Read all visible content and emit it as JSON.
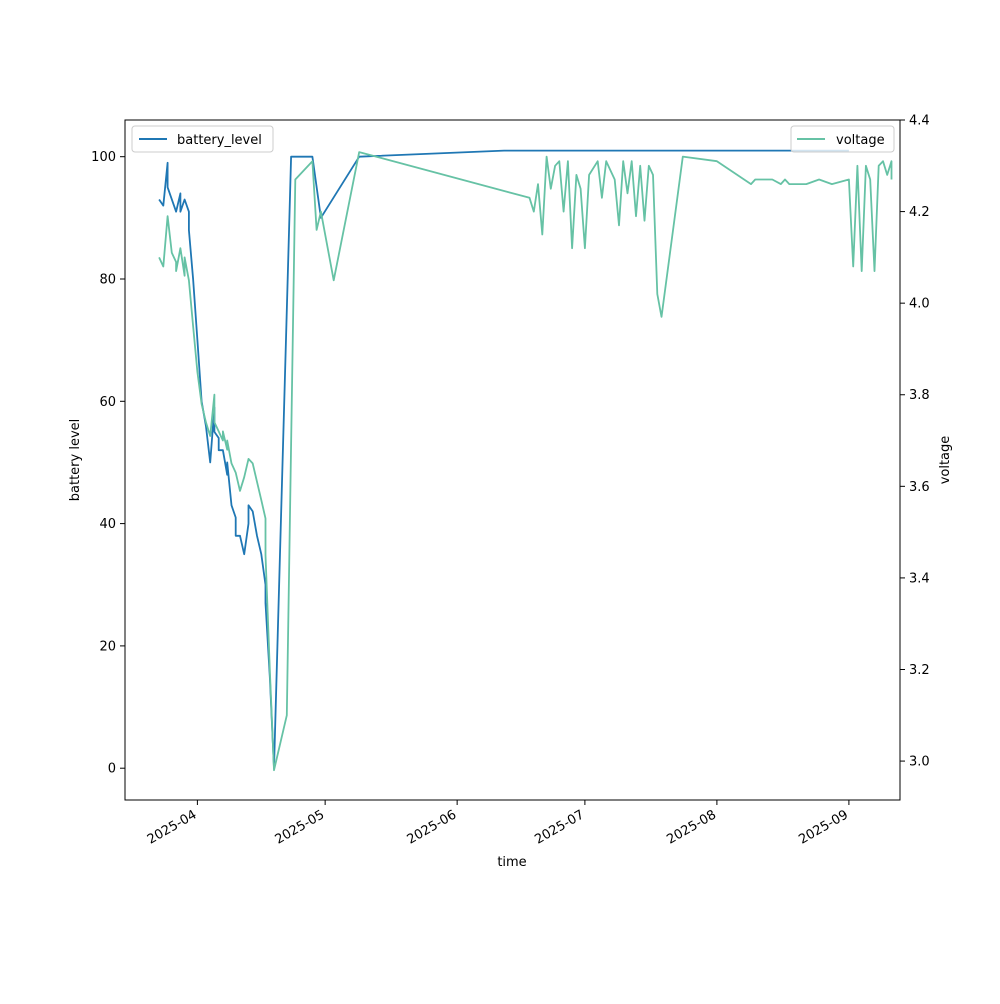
{
  "chart_data": {
    "type": "line",
    "title": "",
    "xlabel": "time",
    "ylabel": "battery level",
    "y2label": "voltage",
    "x_ticks": [
      "2025-04",
      "2025-05",
      "2025-06",
      "2025-07",
      "2025-08",
      "2025-09"
    ],
    "y_ticks": [
      "0",
      "20",
      "40",
      "60",
      "80",
      "100"
    ],
    "y2_ticks": [
      "3.0",
      "3.2",
      "3.4",
      "3.6",
      "3.8",
      "4.0",
      "4.2",
      "4.4"
    ],
    "xlim": [
      "2025-03-15",
      "2025-09-13"
    ],
    "ylim": [
      -5.2,
      106
    ],
    "y2lim": [
      2.915,
      4.4
    ],
    "legend_left": "top-left",
    "legend_right": "top-right",
    "grid": false,
    "colors": {
      "battery_level": "#1f77b4",
      "voltage": "#66c2a5"
    },
    "series": [
      {
        "name": "battery_level",
        "axis": "left",
        "points": [
          [
            "2025-03-23",
            93
          ],
          [
            "2025-03-24",
            92
          ],
          [
            "2025-03-25",
            99
          ],
          [
            "2025-03-25",
            95
          ],
          [
            "2025-03-27",
            91
          ],
          [
            "2025-03-28",
            94
          ],
          [
            "2025-03-28",
            91
          ],
          [
            "2025-03-29",
            93
          ],
          [
            "2025-03-30",
            91
          ],
          [
            "2025-03-30",
            88
          ],
          [
            "2025-03-31",
            80
          ],
          [
            "2025-04-01",
            70
          ],
          [
            "2025-04-02",
            60
          ],
          [
            "2025-04-03",
            56
          ],
          [
            "2025-04-04",
            50
          ],
          [
            "2025-04-05",
            59
          ],
          [
            "2025-04-05",
            55
          ],
          [
            "2025-04-06",
            54
          ],
          [
            "2025-04-06",
            52
          ],
          [
            "2025-04-07",
            52
          ],
          [
            "2025-04-08",
            48
          ],
          [
            "2025-04-08",
            50
          ],
          [
            "2025-04-09",
            43
          ],
          [
            "2025-04-10",
            41
          ],
          [
            "2025-04-10",
            38
          ],
          [
            "2025-04-11",
            38
          ],
          [
            "2025-04-12",
            35
          ],
          [
            "2025-04-13",
            40
          ],
          [
            "2025-04-13",
            43
          ],
          [
            "2025-04-14",
            42
          ],
          [
            "2025-04-15",
            38
          ],
          [
            "2025-04-16",
            35
          ],
          [
            "2025-04-17",
            30
          ],
          [
            "2025-04-17",
            27
          ],
          [
            "2025-04-18",
            15
          ],
          [
            "2025-04-19",
            0
          ],
          [
            "2025-04-23",
            100
          ],
          [
            "2025-04-28",
            100
          ],
          [
            "2025-04-30",
            90
          ],
          [
            "2025-05-09",
            100
          ],
          [
            "2025-06-12",
            101
          ],
          [
            "2025-07-10",
            101
          ],
          [
            "2025-08-08",
            101
          ],
          [
            "2025-09-01",
            101
          ]
        ]
      },
      {
        "name": "voltage",
        "axis": "right",
        "points": [
          [
            "2025-03-23",
            4.1
          ],
          [
            "2025-03-24",
            4.08
          ],
          [
            "2025-03-25",
            4.19
          ],
          [
            "2025-03-26",
            4.11
          ],
          [
            "2025-03-27",
            4.09
          ],
          [
            "2025-03-27",
            4.07
          ],
          [
            "2025-03-28",
            4.12
          ],
          [
            "2025-03-29",
            4.06
          ],
          [
            "2025-03-29",
            4.1
          ],
          [
            "2025-03-30",
            4.05
          ],
          [
            "2025-03-31",
            3.95
          ],
          [
            "2025-04-01",
            3.85
          ],
          [
            "2025-04-02",
            3.78
          ],
          [
            "2025-04-03",
            3.74
          ],
          [
            "2025-04-04",
            3.71
          ],
          [
            "2025-04-05",
            3.8
          ],
          [
            "2025-04-05",
            3.74
          ],
          [
            "2025-04-06",
            3.72
          ],
          [
            "2025-04-07",
            3.7
          ],
          [
            "2025-04-07",
            3.72
          ],
          [
            "2025-04-08",
            3.68
          ],
          [
            "2025-04-08",
            3.7
          ],
          [
            "2025-04-09",
            3.65
          ],
          [
            "2025-04-10",
            3.63
          ],
          [
            "2025-04-11",
            3.59
          ],
          [
            "2025-04-12",
            3.62
          ],
          [
            "2025-04-13",
            3.66
          ],
          [
            "2025-04-14",
            3.65
          ],
          [
            "2025-04-15",
            3.61
          ],
          [
            "2025-04-16",
            3.57
          ],
          [
            "2025-04-17",
            3.53
          ],
          [
            "2025-04-17",
            3.45
          ],
          [
            "2025-04-18",
            3.2
          ],
          [
            "2025-04-19",
            2.98
          ],
          [
            "2025-04-22",
            3.1
          ],
          [
            "2025-04-24",
            4.27
          ],
          [
            "2025-04-28",
            4.31
          ],
          [
            "2025-04-29",
            4.16
          ],
          [
            "2025-04-30",
            4.2
          ],
          [
            "2025-05-03",
            4.05
          ],
          [
            "2025-05-09",
            4.33
          ],
          [
            "2025-06-18",
            4.23
          ],
          [
            "2025-06-19",
            4.2
          ],
          [
            "2025-06-20",
            4.26
          ],
          [
            "2025-06-21",
            4.15
          ],
          [
            "2025-06-22",
            4.32
          ],
          [
            "2025-06-23",
            4.25
          ],
          [
            "2025-06-24",
            4.3
          ],
          [
            "2025-06-25",
            4.31
          ],
          [
            "2025-06-26",
            4.2
          ],
          [
            "2025-06-27",
            4.31
          ],
          [
            "2025-06-28",
            4.12
          ],
          [
            "2025-06-29",
            4.28
          ],
          [
            "2025-06-30",
            4.25
          ],
          [
            "2025-07-01",
            4.12
          ],
          [
            "2025-07-02",
            4.28
          ],
          [
            "2025-07-04",
            4.31
          ],
          [
            "2025-07-05",
            4.23
          ],
          [
            "2025-07-06",
            4.31
          ],
          [
            "2025-07-08",
            4.27
          ],
          [
            "2025-07-09",
            4.17
          ],
          [
            "2025-07-10",
            4.31
          ],
          [
            "2025-07-11",
            4.24
          ],
          [
            "2025-07-12",
            4.31
          ],
          [
            "2025-07-13",
            4.19
          ],
          [
            "2025-07-14",
            4.3
          ],
          [
            "2025-07-15",
            4.18
          ],
          [
            "2025-07-16",
            4.3
          ],
          [
            "2025-07-17",
            4.28
          ],
          [
            "2025-07-18",
            4.02
          ],
          [
            "2025-07-19",
            3.97
          ],
          [
            "2025-07-24",
            4.32
          ],
          [
            "2025-08-01",
            4.31
          ],
          [
            "2025-08-09",
            4.26
          ],
          [
            "2025-08-10",
            4.27
          ],
          [
            "2025-08-12",
            4.27
          ],
          [
            "2025-08-14",
            4.27
          ],
          [
            "2025-08-16",
            4.26
          ],
          [
            "2025-08-17",
            4.27
          ],
          [
            "2025-08-18",
            4.26
          ],
          [
            "2025-08-22",
            4.26
          ],
          [
            "2025-08-25",
            4.27
          ],
          [
            "2025-08-28",
            4.26
          ],
          [
            "2025-09-01",
            4.27
          ],
          [
            "2025-09-02",
            4.08
          ],
          [
            "2025-09-03",
            4.3
          ],
          [
            "2025-09-04",
            4.07
          ],
          [
            "2025-09-05",
            4.3
          ],
          [
            "2025-09-06",
            4.27
          ],
          [
            "2025-09-07",
            4.07
          ],
          [
            "2025-09-08",
            4.3
          ],
          [
            "2025-09-09",
            4.31
          ],
          [
            "2025-09-10",
            4.28
          ],
          [
            "2025-09-11",
            4.31
          ],
          [
            "2025-09-11",
            4.27
          ]
        ]
      }
    ]
  }
}
